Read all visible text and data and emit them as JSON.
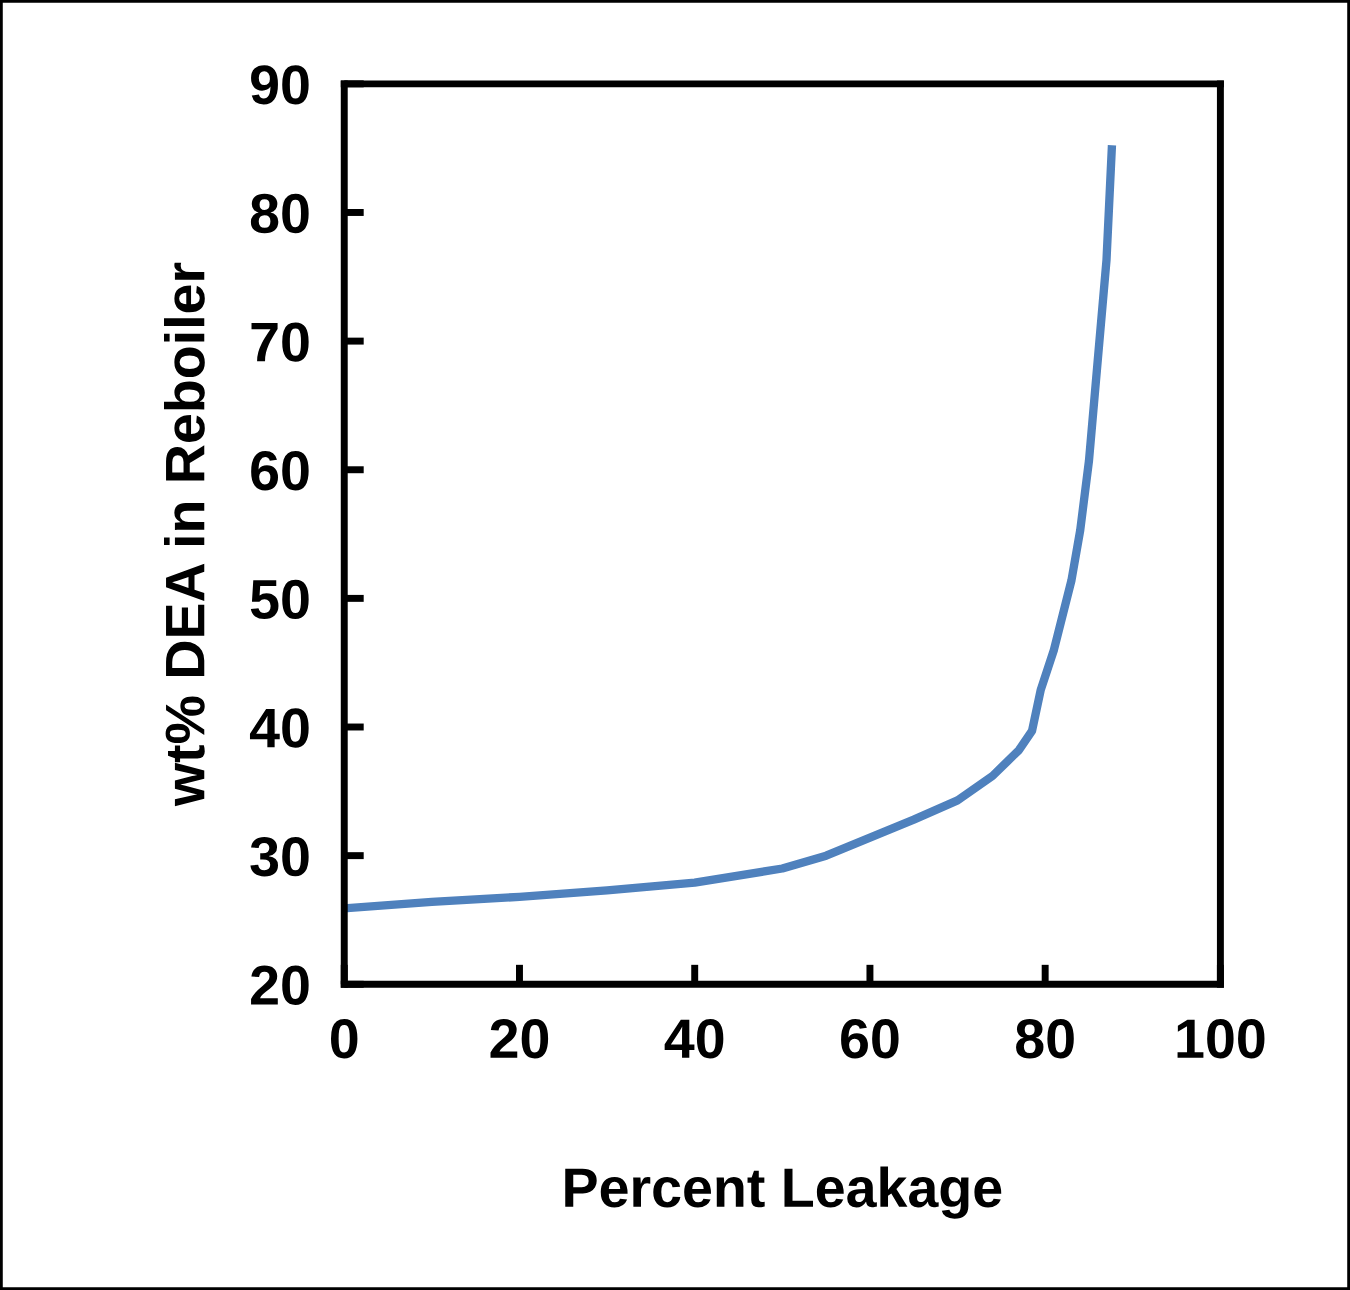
{
  "chart_data": {
    "type": "line",
    "xlabel": "Percent Leakage",
    "ylabel": "wt% DEA in Reboiler",
    "series": [
      {
        "color": "#4f81bd",
        "x": [
          0,
          10,
          20,
          30,
          40,
          50,
          55,
          60,
          65,
          70,
          74,
          77,
          78.5,
          79.5,
          81,
          83,
          84,
          85,
          86,
          87,
          87.6
        ],
        "values": [
          25.9,
          26.4,
          26.8,
          27.3,
          27.9,
          29.0,
          30.0,
          31.4,
          32.8,
          34.3,
          36.2,
          38.2,
          39.7,
          42.9,
          46.0,
          51.4,
          55.3,
          60.7,
          68.5,
          76.3,
          84.9
        ]
      }
    ],
    "xlim": [
      0,
      100
    ],
    "ylim": [
      20,
      90
    ],
    "xticks": [
      0,
      20,
      40,
      60,
      80,
      100
    ],
    "yticks": [
      20,
      30,
      40,
      50,
      60,
      70,
      80,
      90
    ],
    "grid": false,
    "legend": false,
    "line_style": "solid",
    "marker": "none"
  }
}
